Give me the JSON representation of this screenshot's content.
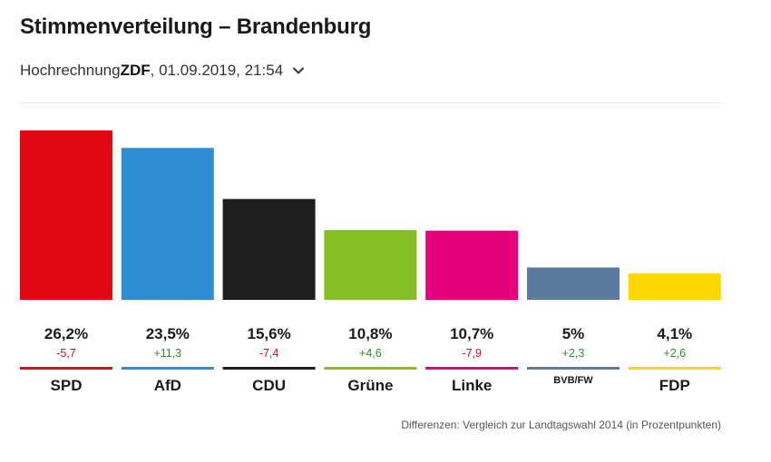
{
  "header": {
    "title": "Stimmenverteilung – Brandenburg",
    "subtitle_prefix": "Hochrechnung ",
    "subtitle_source": "ZDF",
    "subtitle_suffix": ", 01.09.2019, 21:54",
    "dropdown_icon": "chevron-down-icon"
  },
  "footnote": "Differenzen: Vergleich zur Landtagswahl 2014 (in Prozentpunkten)",
  "colors": {
    "positive": "#2e8b2e",
    "negative": "#d0101a"
  },
  "chart_data": {
    "type": "bar",
    "title": "Stimmenverteilung – Brandenburg",
    "xlabel": "",
    "ylabel": "",
    "ylim": [
      0,
      26.2
    ],
    "categories": [
      "SPD",
      "AfD",
      "CDU",
      "Grüne",
      "Linke",
      "BVB/FW",
      "FDP"
    ],
    "values": [
      26.2,
      23.5,
      15.6,
      10.8,
      10.7,
      5,
      4.1
    ],
    "value_labels": [
      "26,2%",
      "23,5%",
      "15,6%",
      "10,8%",
      "10,7%",
      "5%",
      "4,1%"
    ],
    "differences": [
      -5.7,
      11.3,
      -7.4,
      4.6,
      -7.9,
      2.3,
      2.6
    ],
    "difference_labels": [
      "-5,7",
      "+11,3",
      "-7,4",
      "+4,6",
      "-7,9",
      "+2,3",
      "+2,6"
    ],
    "colors": [
      "#e30613",
      "#2f8dd3",
      "#1e1e1e",
      "#86be26",
      "#e6007e",
      "#5b7aa0",
      "#ffd700"
    ],
    "grid": false,
    "legend": "none"
  }
}
